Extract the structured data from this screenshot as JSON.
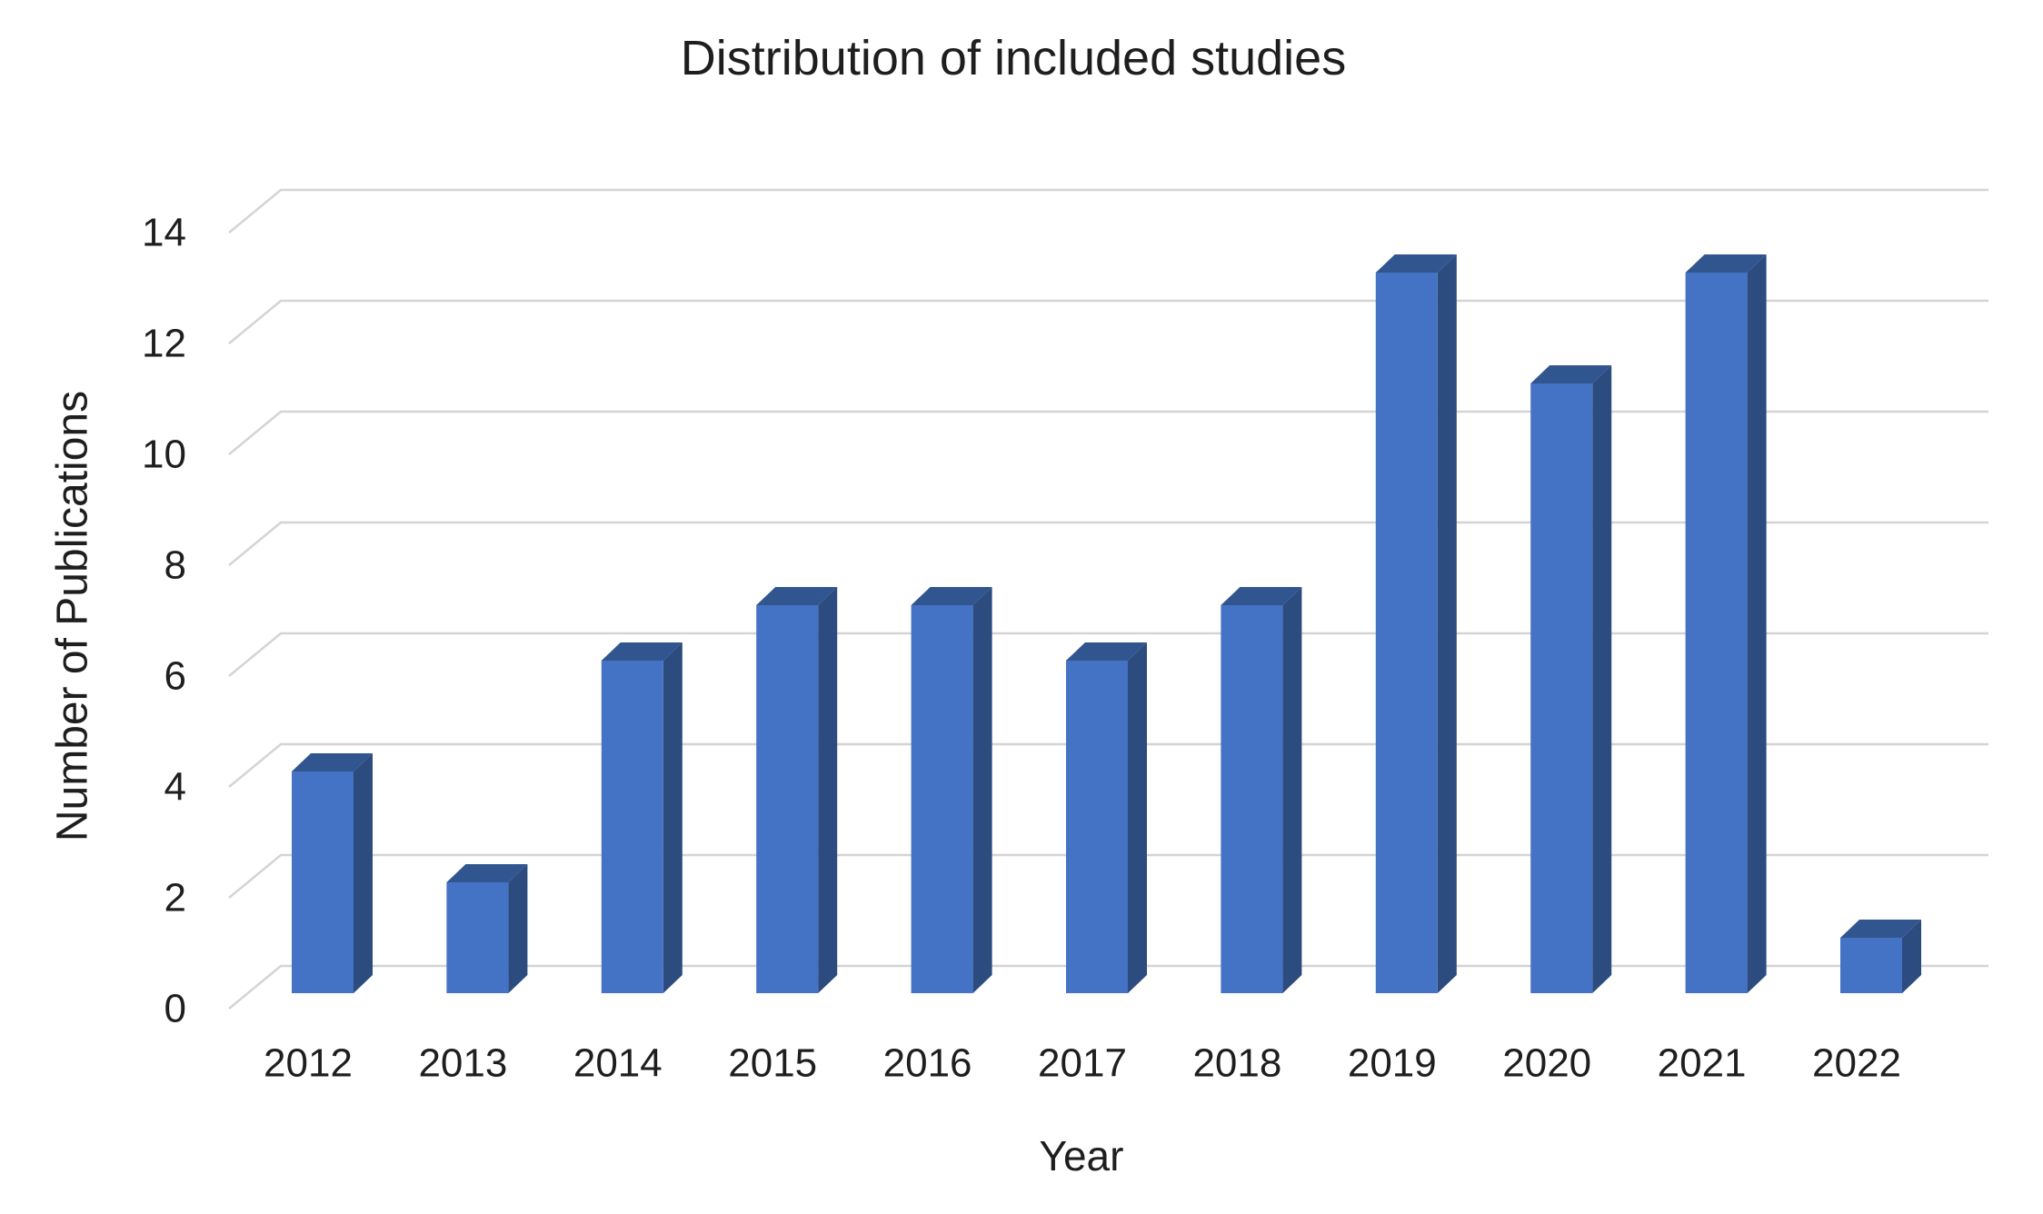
{
  "chart_data": {
    "type": "bar",
    "style": "3d-column",
    "title": "Distribution of included studies",
    "xlabel": "Year",
    "ylabel": "Number of Publications",
    "categories": [
      "2012",
      "2013",
      "2014",
      "2015",
      "2016",
      "2017",
      "2018",
      "2019",
      "2020",
      "2021",
      "2022"
    ],
    "values": [
      4,
      2,
      6,
      7,
      7,
      6,
      7,
      13,
      11,
      13,
      1
    ],
    "ylim": [
      0,
      14
    ],
    "yticks": [
      0,
      2,
      4,
      6,
      8,
      10,
      12,
      14
    ],
    "grid": true,
    "legend": false,
    "colors": {
      "bar_front": "#4472C4",
      "bar_top": "#31568F",
      "bar_side": "#2C4B7F",
      "gridline": "#D4D4D4",
      "text": "#1E1E1E",
      "background": "#FFFFFF"
    }
  }
}
